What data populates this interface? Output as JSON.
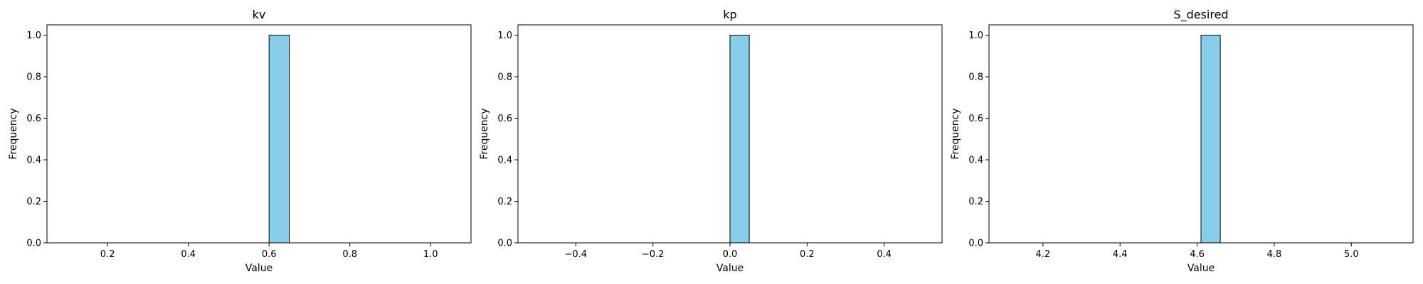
{
  "colors": {
    "bar_fill": "#87ceeb",
    "bar_edge": "#000000",
    "axis": "#000000",
    "baseline_edge": "#6fa8c0"
  },
  "chart_data": [
    {
      "type": "bar",
      "title": "kv",
      "xlabel": "Value",
      "ylabel": "Frequency",
      "xlim": [
        0.05,
        1.1
      ],
      "ylim": [
        0.0,
        1.05
      ],
      "x_ticks": [
        0.2,
        0.4,
        0.6,
        0.8,
        1.0
      ],
      "x_tick_labels": [
        "0.2",
        "0.4",
        "0.6",
        "0.8",
        "1.0"
      ],
      "y_ticks": [
        0.0,
        0.2,
        0.4,
        0.6,
        0.8,
        1.0
      ],
      "y_tick_labels": [
        "0.0",
        "0.2",
        "0.4",
        "0.6",
        "0.8",
        "1.0"
      ],
      "bins": {
        "start": 0.1,
        "end": 1.1,
        "count": 20
      },
      "values": [
        0,
        0,
        0,
        0,
        0,
        0,
        0,
        0,
        0,
        0,
        1,
        0,
        0,
        0,
        0,
        0,
        0,
        0,
        0,
        0
      ]
    },
    {
      "type": "bar",
      "title": "kp",
      "xlabel": "Value",
      "ylabel": "Frequency",
      "xlim": [
        -0.55,
        0.55
      ],
      "ylim": [
        0.0,
        1.05
      ],
      "x_ticks": [
        -0.4,
        -0.2,
        0.0,
        0.2,
        0.4
      ],
      "x_tick_labels": [
        "−0.4",
        "−0.2",
        "0.0",
        "0.2",
        "0.4"
      ],
      "y_ticks": [
        0.0,
        0.2,
        0.4,
        0.6,
        0.8,
        1.0
      ],
      "y_tick_labels": [
        "0.0",
        "0.2",
        "0.4",
        "0.6",
        "0.8",
        "1.0"
      ],
      "bins": {
        "start": -0.5,
        "end": 0.5,
        "count": 20
      },
      "values": [
        0,
        0,
        0,
        0,
        0,
        0,
        0,
        0,
        0,
        0,
        1,
        0,
        0,
        0,
        0,
        0,
        0,
        0,
        0,
        0
      ]
    },
    {
      "type": "bar",
      "title": "S_desired",
      "xlabel": "Value",
      "ylabel": "Frequency",
      "xlim": [
        4.06,
        5.16
      ],
      "ylim": [
        0.0,
        1.05
      ],
      "x_ticks": [
        4.2,
        4.4,
        4.6,
        4.8,
        5.0
      ],
      "x_tick_labels": [
        "4.2",
        "4.4",
        "4.6",
        "4.8",
        "5.0"
      ],
      "y_ticks": [
        0.0,
        0.2,
        0.4,
        0.6,
        0.8,
        1.0
      ],
      "y_tick_labels": [
        "0.0",
        "0.2",
        "0.4",
        "0.6",
        "0.8",
        "1.0"
      ],
      "bins": {
        "start": 4.11,
        "end": 5.11,
        "count": 20
      },
      "values": [
        0,
        0,
        0,
        0,
        0,
        0,
        0,
        0,
        0,
        0,
        1,
        0,
        0,
        0,
        0,
        0,
        0,
        0,
        0,
        0
      ]
    }
  ]
}
